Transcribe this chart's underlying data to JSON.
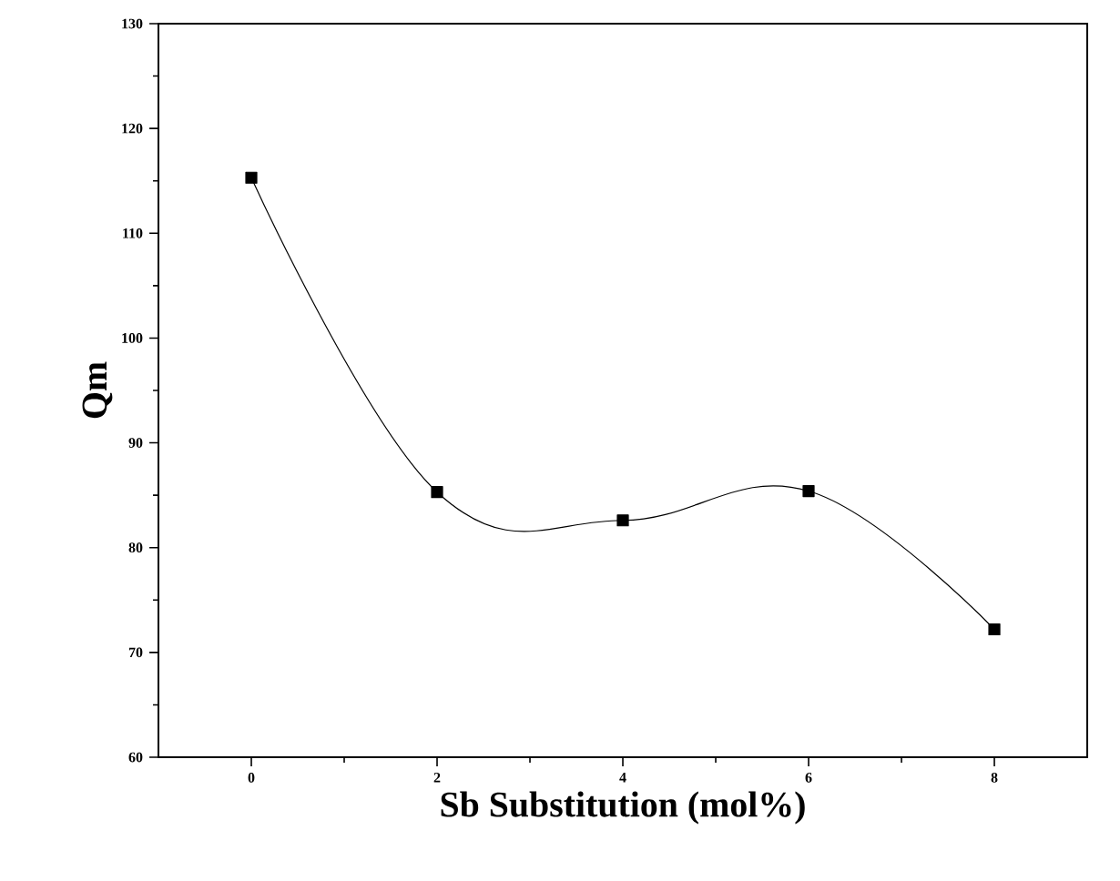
{
  "chart_data": {
    "type": "line",
    "xlabel": "Sb Substitution (mol%)",
    "ylabel": "Qm",
    "x": [
      0,
      2,
      4,
      6,
      8
    ],
    "series": [
      {
        "color": "#000000",
        "values": [
          115.3,
          85.3,
          82.6,
          85.4,
          72.2
        ]
      }
    ],
    "xlim": [
      -1,
      9
    ],
    "xticks": [
      0,
      2,
      4,
      6,
      8
    ],
    "ylim": [
      60,
      130
    ],
    "yticks": [
      60,
      70,
      80,
      90,
      100,
      110,
      120,
      130
    ],
    "marker": "square",
    "line_style": "solid"
  }
}
